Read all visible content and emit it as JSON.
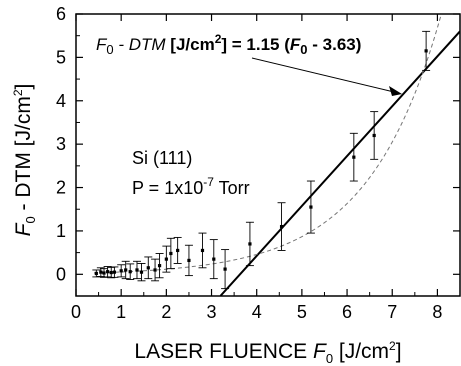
{
  "chart_data": {
    "type": "scatter",
    "xlabel_main": "LASER FLUENCE ",
    "xlabel_var": "F",
    "xlabel_sub": "0",
    "xlabel_unit": " [J/cm",
    "xlabel_sup": "2",
    "xlabel_end": "]",
    "ylabel_var": "F",
    "ylabel_sub": "0",
    "ylabel_rest": " - DTM [J/cm",
    "ylabel_sup": "2",
    "ylabel_end": "]",
    "xlim": [
      0,
      8.5
    ],
    "ylim": [
      -0.5,
      6
    ],
    "xticks": [
      "0",
      "1",
      "2",
      "3",
      "4",
      "5",
      "6",
      "7",
      "8"
    ],
    "yticks": [
      "0",
      "1",
      "2",
      "3",
      "4",
      "5",
      "6"
    ],
    "sample_label": "Si (111)",
    "pressure_label": "P = 1x10",
    "pressure_exp": "-7",
    "pressure_unit": " Torr",
    "equation": {
      "lhs_var": "F",
      "lhs_sub": "0",
      "lhs_rest": " - DTM",
      "unit": " [J/cm",
      "unit_sup": "2",
      "unit_end": "] = 1.15 (",
      "rhs_var": "F",
      "rhs_sub": "0",
      "rhs_end": " - 3.63)"
    },
    "fit": {
      "slope": 1.15,
      "intercept_x": 3.63,
      "x_start": 3.2,
      "x_end": 8.5
    },
    "points": [
      {
        "x": 0.45,
        "y": 0.02,
        "err": 0.08
      },
      {
        "x": 0.55,
        "y": 0.05,
        "err": 0.1
      },
      {
        "x": 0.62,
        "y": 0.03,
        "err": 0.1
      },
      {
        "x": 0.7,
        "y": 0.06,
        "err": 0.12
      },
      {
        "x": 0.78,
        "y": 0.04,
        "err": 0.12
      },
      {
        "x": 0.85,
        "y": 0.05,
        "err": 0.12
      },
      {
        "x": 1.0,
        "y": 0.08,
        "err": 0.14
      },
      {
        "x": 1.1,
        "y": 0.1,
        "err": 0.2
      },
      {
        "x": 1.2,
        "y": 0.06,
        "err": 0.18
      },
      {
        "x": 1.35,
        "y": 0.1,
        "err": 0.2
      },
      {
        "x": 1.45,
        "y": 0.05,
        "err": 0.2
      },
      {
        "x": 1.6,
        "y": 0.15,
        "err": 0.25
      },
      {
        "x": 1.75,
        "y": 0.1,
        "err": 0.25
      },
      {
        "x": 1.85,
        "y": 0.2,
        "err": 0.28
      },
      {
        "x": 2.0,
        "y": 0.35,
        "err": 0.3
      },
      {
        "x": 2.1,
        "y": 0.48,
        "err": 0.35
      },
      {
        "x": 2.25,
        "y": 0.55,
        "err": 0.3
      },
      {
        "x": 2.5,
        "y": 0.32,
        "err": 0.35
      },
      {
        "x": 2.8,
        "y": 0.55,
        "err": 0.4
      },
      {
        "x": 3.05,
        "y": 0.35,
        "err": 0.45
      },
      {
        "x": 3.3,
        "y": 0.12,
        "err": 0.45
      },
      {
        "x": 3.85,
        "y": 0.7,
        "err": 0.5
      },
      {
        "x": 4.55,
        "y": 1.1,
        "err": 0.55
      },
      {
        "x": 5.2,
        "y": 1.55,
        "err": 0.6
      },
      {
        "x": 6.15,
        "y": 2.7,
        "err": 0.55
      },
      {
        "x": 6.6,
        "y": 3.2,
        "err": 0.55
      },
      {
        "x": 7.75,
        "y": 5.15,
        "err": 0.45
      }
    ]
  }
}
